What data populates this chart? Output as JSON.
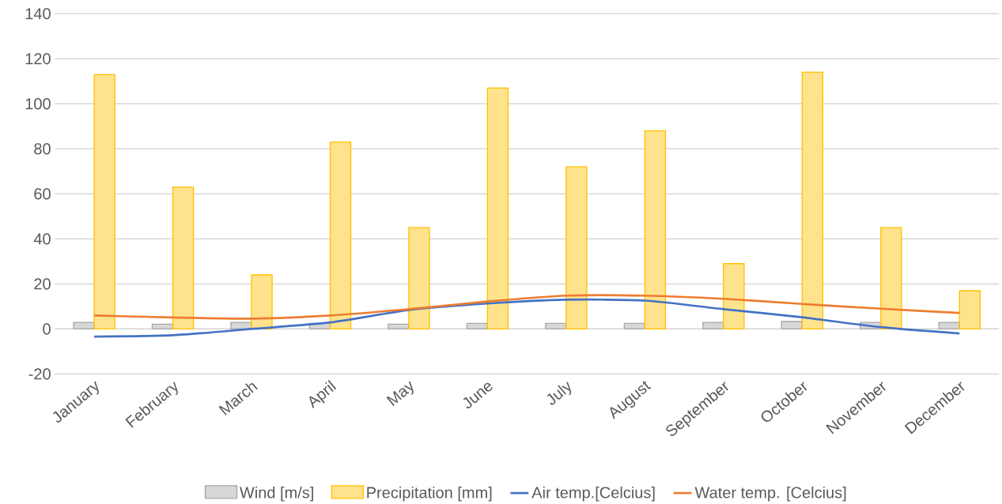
{
  "chart_data": {
    "type": "bar",
    "categories": [
      "January",
      "February",
      "March",
      "April",
      "May",
      "June",
      "July",
      "August",
      "September",
      "October",
      "November",
      "December"
    ],
    "series": [
      {
        "name": "Wind [m/s]",
        "color": "#a6a6a6",
        "values": [
          2.9,
          2.1,
          2.9,
          2.5,
          2.1,
          2.5,
          2.5,
          2.5,
          2.9,
          3.3,
          2.9,
          2.9
        ]
      },
      {
        "name": "Precipitation [mm]",
        "color": "#ffc000",
        "values": [
          113,
          63,
          24,
          83,
          45,
          107,
          72,
          88,
          29,
          114,
          45,
          17
        ]
      },
      {
        "name": "Air temp.[Celcius]",
        "type": "line",
        "color": "#4472c4",
        "values": [
          -3.4,
          -2.8,
          0,
          2.9,
          8.4,
          11.3,
          13,
          12.6,
          8.8,
          5.2,
          0.8,
          -2
        ]
      },
      {
        "name": "Water temp. [Celcius]",
        "type": "line",
        "color": "#ed7d31",
        "values": [
          6,
          5.1,
          4.6,
          6,
          8.8,
          12.2,
          14.8,
          14.8,
          13.4,
          11.1,
          9,
          7.1
        ]
      }
    ],
    "ylim": [
      -20,
      140
    ],
    "yticks": [
      -20,
      0,
      20,
      40,
      60,
      80,
      100,
      120,
      140
    ],
    "grid": "y",
    "legend": "bottom"
  }
}
